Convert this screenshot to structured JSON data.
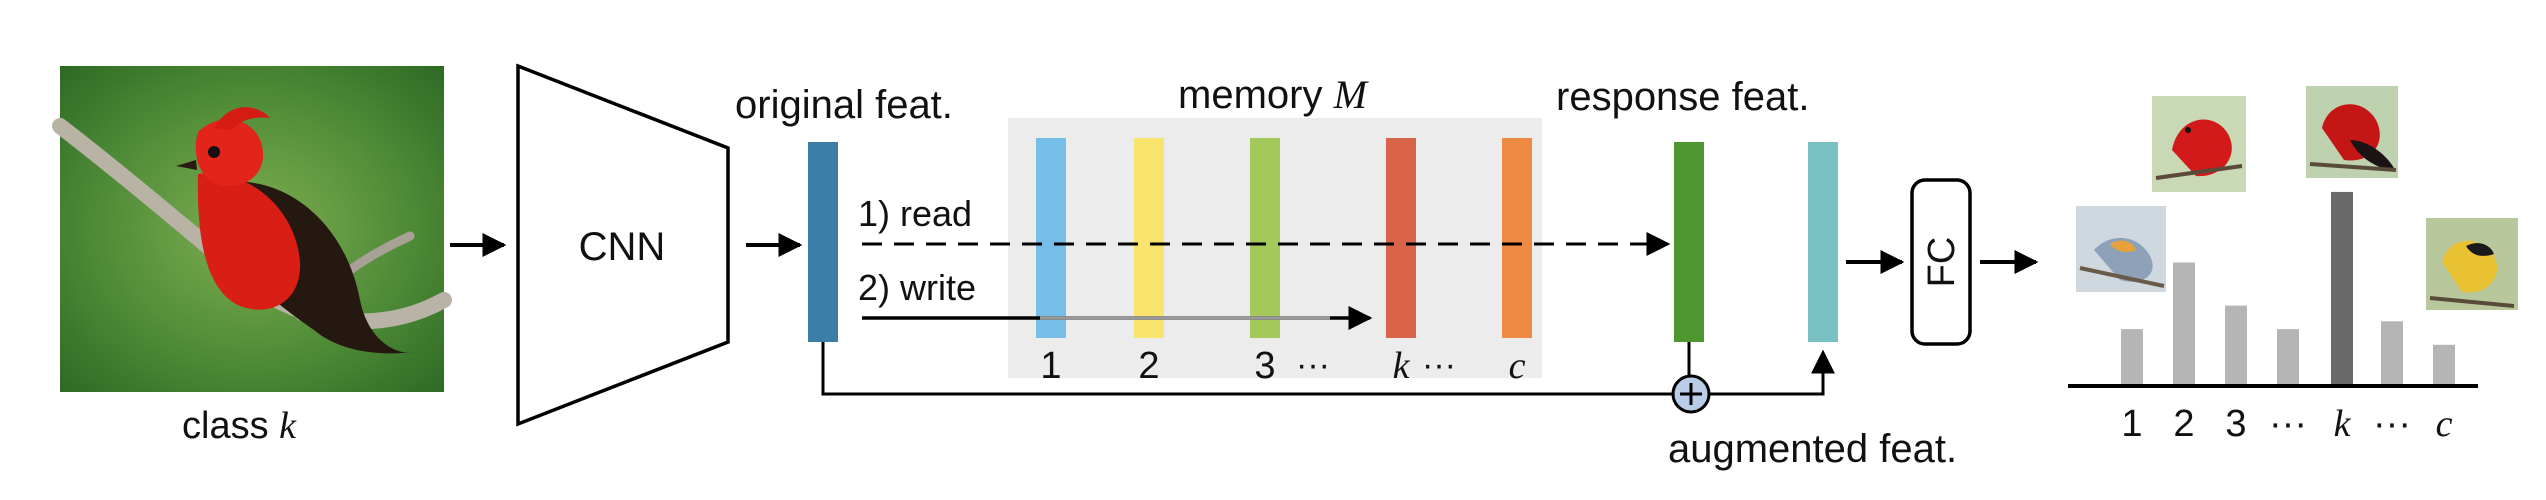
{
  "input": {
    "caption_prefix": "class",
    "caption_var": "k"
  },
  "cnn": {
    "label": "CNN"
  },
  "original_feat": {
    "label": "original feat."
  },
  "memory": {
    "label_prefix": "memory",
    "label_var": "M",
    "slots": [
      {
        "label": "1",
        "color": "#76bde7"
      },
      {
        "label": "2",
        "color": "#f8e46c"
      },
      {
        "label": "3",
        "color": "#a3c95a"
      },
      {
        "label": "k",
        "color": "#d9644a"
      },
      {
        "label": "c",
        "color": "#ee8a44"
      }
    ],
    "ellipsis": "···"
  },
  "ops": {
    "read": "1) read",
    "write": "2) write"
  },
  "response_feat": {
    "label": "response feat.",
    "color": "#4d9630"
  },
  "augmented_feat": {
    "label": "augmented feat.",
    "color": "#78c0c2"
  },
  "fc": {
    "label": "FC"
  },
  "output": {
    "x_labels": [
      "1",
      "2",
      "3",
      "···",
      "k",
      "···",
      "c"
    ],
    "bar_values": [
      0.28,
      0.62,
      0.4,
      0.28,
      0.98,
      0.32,
      0.2
    ],
    "highlight_label": "k"
  },
  "colors": {
    "feature": "#3b7fa8",
    "memory_bg": "#ececec",
    "add_node": "#b9cde8"
  }
}
